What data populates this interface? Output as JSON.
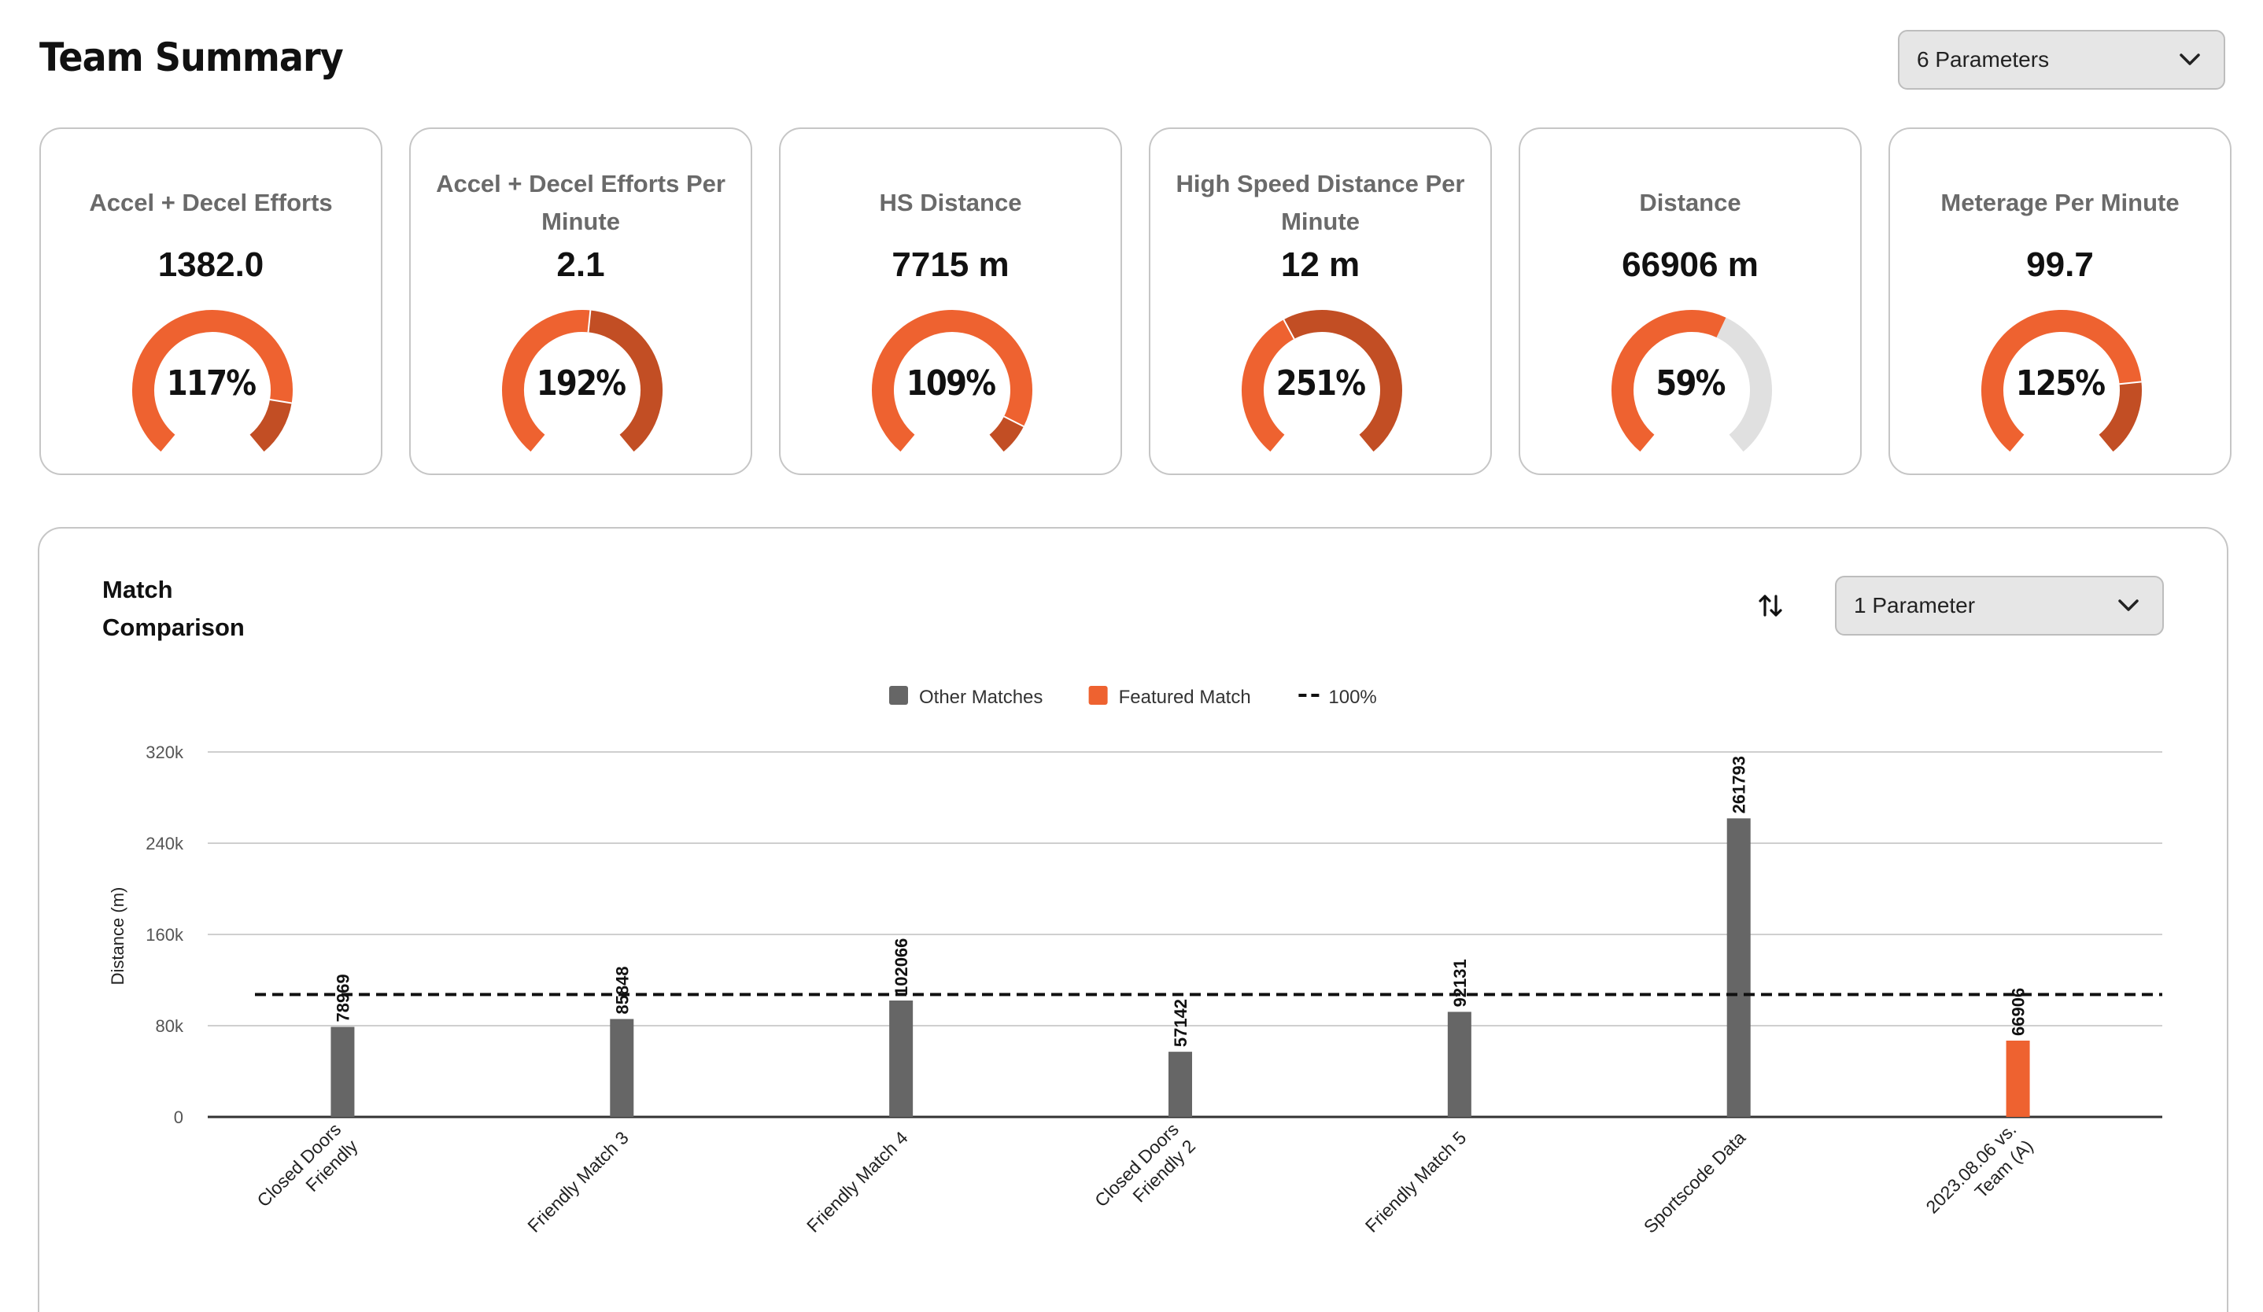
{
  "header": {
    "title": "Team Summary",
    "parameters_select": "6 Parameters"
  },
  "kpis": [
    {
      "title": "Accel + Decel Efforts",
      "value": "1382.0",
      "percent": 117,
      "percent_label": "117%"
    },
    {
      "title": "Accel + Decel Efforts Per Minute",
      "value": "2.1",
      "percent": 192,
      "percent_label": "192%"
    },
    {
      "title": "HS Distance",
      "value": "7715 m",
      "percent": 109,
      "percent_label": "109%"
    },
    {
      "title": "High Speed Distance Per Minute",
      "value": "12 m",
      "percent": 251,
      "percent_label": "251%"
    },
    {
      "title": "Distance",
      "value": "66906 m",
      "percent": 59,
      "percent_label": "59%"
    },
    {
      "title": "Meterage Per Minute",
      "value": "99.7",
      "percent": 125,
      "percent_label": "125%"
    }
  ],
  "colors": {
    "featured": "#ee6230",
    "over": "#c24e24",
    "other": "#666666",
    "track": "#e0e0e0",
    "grid": "#cfcfcf"
  },
  "match_comparison": {
    "title": "Match Comparison",
    "sort_icon": "sort-arrows-icon",
    "parameter_select": "1 Parameter",
    "chart_data": {
      "type": "bar",
      "ylabel": "Distance (m)",
      "ylim": [
        0,
        320000
      ],
      "yticks": [
        0,
        80000,
        160000,
        240000,
        320000
      ],
      "ytick_labels": [
        "0",
        "80k",
        "160k",
        "240k",
        "320k"
      ],
      "reference_line": 107300,
      "legend": [
        {
          "label": "Other Matches",
          "type": "swatch",
          "color": "#666666"
        },
        {
          "label": "Featured Match",
          "type": "swatch",
          "color": "#ee6230"
        },
        {
          "label": "100%",
          "type": "dashed"
        }
      ],
      "legend_position": "top-center",
      "grid": true,
      "categories": [
        [
          "Closed Doors",
          "Friendly"
        ],
        [
          "Friendly Match 3"
        ],
        [
          "Friendly Match 4"
        ],
        [
          "Closed Doors",
          "Friendly 2"
        ],
        [
          "Friendly Match 5"
        ],
        [
          "Sportscode Data"
        ],
        [
          "2023.08.06 vs.",
          "Team (A)"
        ]
      ],
      "values": [
        78969,
        85848,
        102066,
        57142,
        92131,
        261793,
        66906
      ],
      "value_labels": [
        "78969",
        "85848",
        "102066",
        "57142",
        "92131",
        "261793",
        "66906"
      ],
      "featured": [
        false,
        false,
        false,
        false,
        false,
        false,
        true
      ]
    }
  }
}
